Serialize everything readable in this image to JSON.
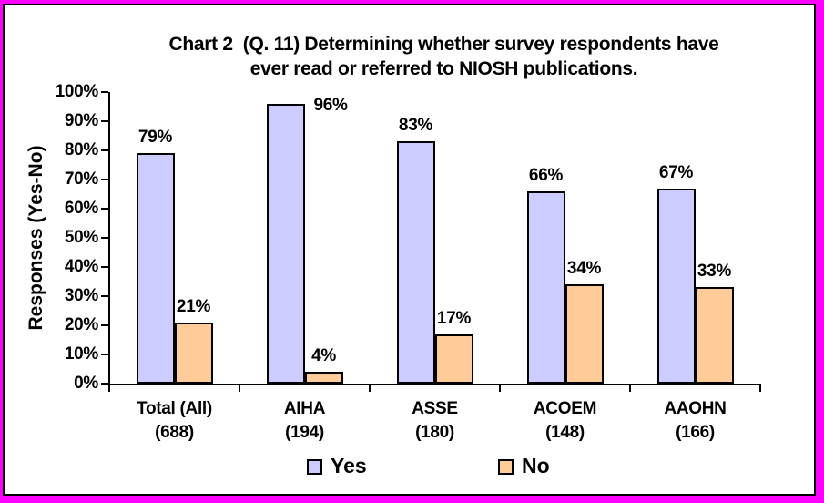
{
  "title": {
    "line1": "Chart 2  (Q. 11) Determining whether survey respondents have",
    "line2": "ever read or referred to NIOSH publications."
  },
  "colors": {
    "outer_border": "#FF00FF",
    "frame_border": "#000000",
    "background": "#FFFFFF",
    "bar_border": "#000000",
    "text": "#000000"
  },
  "chart_data": {
    "type": "bar",
    "title": "Chart 2  (Q. 11) Determining whether survey respondents have ever read or referred to NIOSH publications.",
    "xlabel": "",
    "ylabel": "Responses (Yes-No)",
    "ylim": [
      0,
      100
    ],
    "ytick_step": 10,
    "ytick_labels": [
      "0%",
      "10%",
      "20%",
      "30%",
      "40%",
      "50%",
      "60%",
      "70%",
      "80%",
      "90%",
      "100%"
    ],
    "grid": false,
    "legend_position": "bottom",
    "data_label_format": "{v}%",
    "categories": [
      {
        "name": "Total (All)",
        "count": "(688)"
      },
      {
        "name": "AIHA",
        "count": "(194)"
      },
      {
        "name": "ASSE",
        "count": "(180)"
      },
      {
        "name": "ACOEM",
        "count": "(148)"
      },
      {
        "name": "AAOHN",
        "count": "(166)"
      }
    ],
    "series": [
      {
        "name": "Yes",
        "color": "#CCCCFF",
        "values": [
          79,
          96,
          83,
          66,
          67
        ]
      },
      {
        "name": "No",
        "color": "#FFCC99",
        "values": [
          21,
          4,
          17,
          34,
          33
        ]
      }
    ]
  }
}
